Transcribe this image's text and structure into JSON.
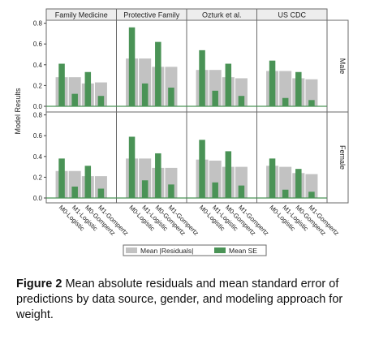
{
  "caption": {
    "label": "Figure 2",
    "text": "Mean absolute residuals and mean standard error of predictions by data source, gender, and modeling approach for weight."
  },
  "chart_data": {
    "type": "bar",
    "ylabel": "Model Results",
    "ylim": [
      0,
      0.85
    ],
    "yticks": [
      "0.0",
      "0.2",
      "0.4",
      "0.6",
      "0.8"
    ],
    "columns": [
      "Family Medicine",
      "Protective Family",
      "Ozturk et al.",
      "US CDC"
    ],
    "rows": [
      "Male",
      "Female"
    ],
    "categories": [
      "M0-Logistic",
      "M1-Logistic",
      "M0-Gompertz",
      "M1-Gompertz"
    ],
    "legend": {
      "placement": "bottom",
      "entries": [
        "Mean |Residuals|",
        "Mean SE"
      ]
    },
    "colors": {
      "residuals": "#c2c2c2",
      "se": "#4a9356",
      "frame": "#6a6a6a",
      "zero_line": "#4a9356",
      "strip": "#ededed"
    },
    "panels": [
      {
        "row": "Male",
        "column": "Family Medicine",
        "residuals": [
          0.28,
          0.28,
          0.22,
          0.23
        ],
        "se": [
          0.41,
          0.12,
          0.33,
          0.1
        ]
      },
      {
        "row": "Male",
        "column": "Protective Family",
        "residuals": [
          0.46,
          0.46,
          0.38,
          0.38
        ],
        "se": [
          0.76,
          0.22,
          0.62,
          0.18
        ]
      },
      {
        "row": "Male",
        "column": "Ozturk et al.",
        "residuals": [
          0.35,
          0.35,
          0.28,
          0.27
        ],
        "se": [
          0.54,
          0.15,
          0.41,
          0.1
        ]
      },
      {
        "row": "Male",
        "column": "US CDC",
        "residuals": [
          0.34,
          0.34,
          0.27,
          0.26
        ],
        "se": [
          0.44,
          0.08,
          0.33,
          0.06
        ]
      },
      {
        "row": "Female",
        "column": "Family Medicine",
        "residuals": [
          0.26,
          0.26,
          0.21,
          0.21
        ],
        "se": [
          0.38,
          0.11,
          0.31,
          0.09
        ]
      },
      {
        "row": "Female",
        "column": "Protective Family",
        "residuals": [
          0.38,
          0.38,
          0.29,
          0.29
        ],
        "se": [
          0.59,
          0.17,
          0.43,
          0.13
        ]
      },
      {
        "row": "Female",
        "column": "Ozturk et al.",
        "residuals": [
          0.37,
          0.36,
          0.3,
          0.3
        ],
        "se": [
          0.56,
          0.15,
          0.45,
          0.12
        ]
      },
      {
        "row": "Female",
        "column": "US CDC",
        "residuals": [
          0.31,
          0.3,
          0.24,
          0.23
        ],
        "se": [
          0.38,
          0.08,
          0.28,
          0.06
        ]
      }
    ]
  }
}
